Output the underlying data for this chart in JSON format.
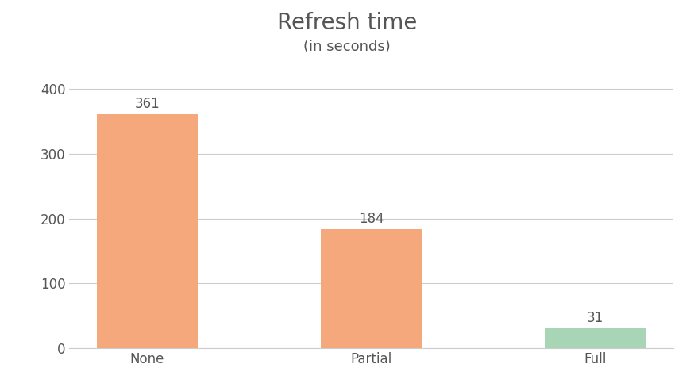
{
  "categories": [
    "None",
    "Partial",
    "Full"
  ],
  "values": [
    361,
    184,
    31
  ],
  "bar_colors": [
    "#F4A87C",
    "#F4A87C",
    "#A8D5B5"
  ],
  "title": "Refresh time",
  "subtitle": "(in seconds)",
  "ylim": [
    0,
    430
  ],
  "yticks": [
    0,
    100,
    200,
    300,
    400
  ],
  "title_fontsize": 20,
  "subtitle_fontsize": 13,
  "tick_fontsize": 12,
  "value_label_fontsize": 12,
  "background_color": "#ffffff",
  "grid_color": "#cccccc",
  "bar_width": 0.45,
  "title_color": "#555555",
  "tick_label_color": "#555555",
  "value_label_color": "#555555"
}
